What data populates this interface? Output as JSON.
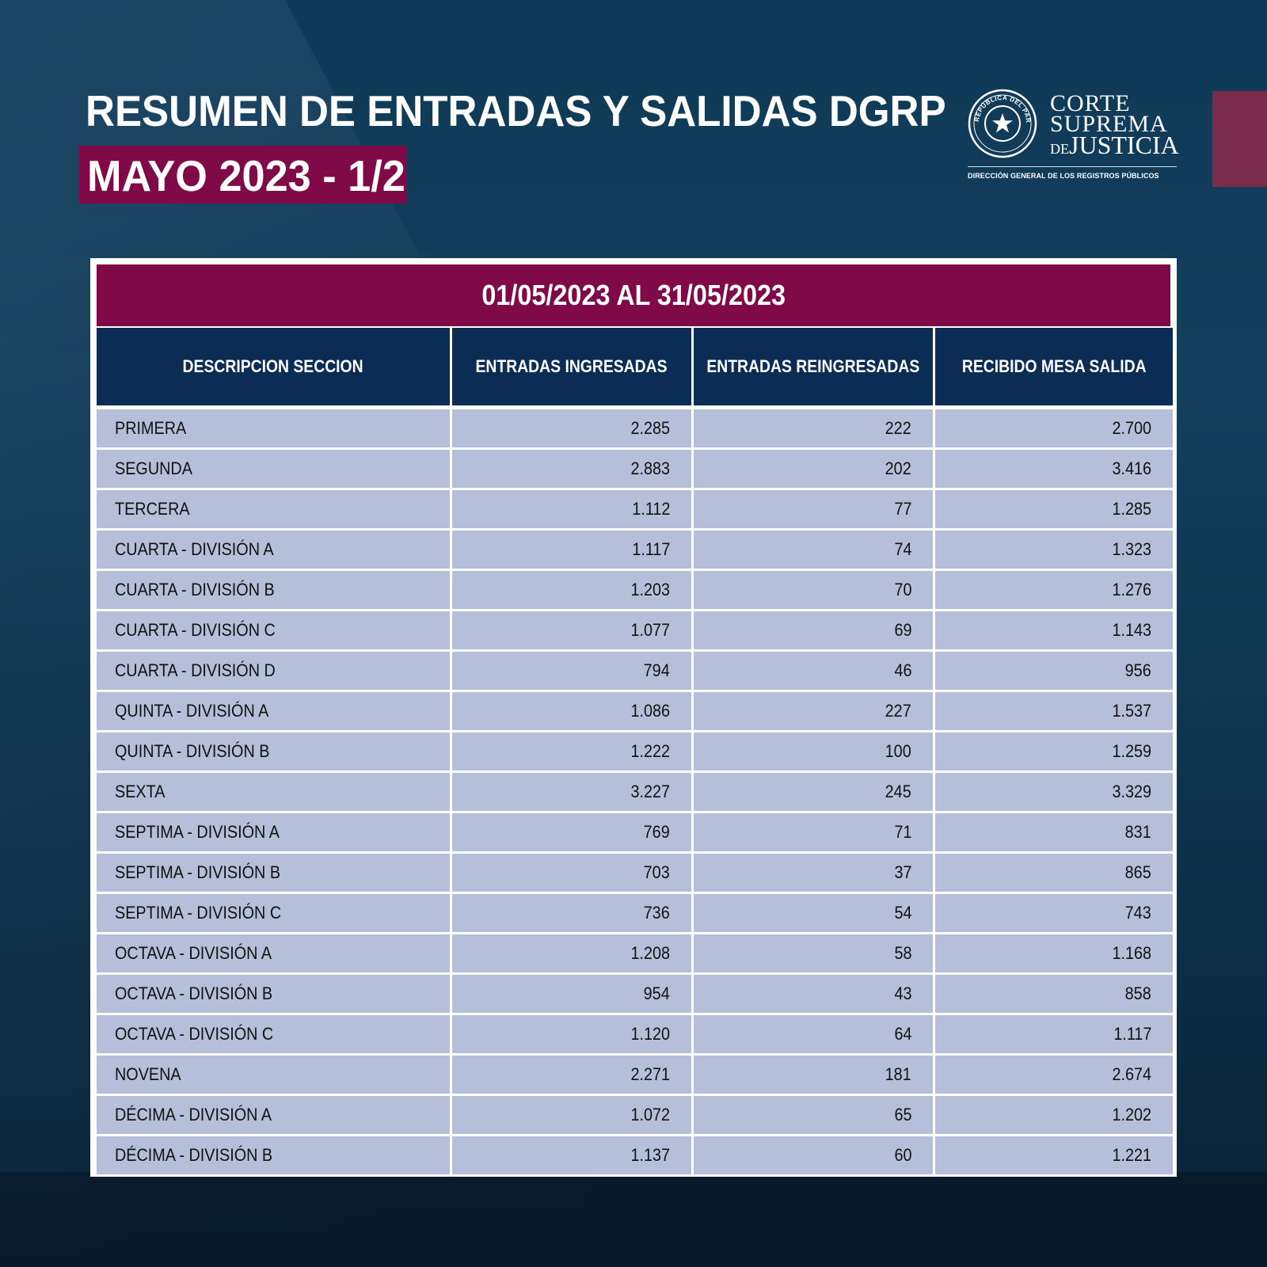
{
  "header": {
    "title": "RESUMEN DE ENTRADAS Y SALIDAS DGRP",
    "subtitle": "MAYO 2023 - 1/2"
  },
  "logo": {
    "line1": "CORTE",
    "line2": "SUPREMA",
    "line3_prefix": "DE",
    "line3": "JUSTICIA",
    "seal_text": "REPÚBLICA DEL PARAGUAY",
    "subtitle": "DIRECCIÓN GENERAL DE LOS REGISTROS PÚBLICOS",
    "icon": "seal-icon"
  },
  "table": {
    "period": "01/05/2023 AL 31/05/2023",
    "columns": [
      "DESCRIPCION SECCION",
      "ENTRADAS INGRESADAS",
      "ENTRADAS REINGRESADAS",
      "RECIBIDO MESA SALIDA"
    ],
    "rows": [
      [
        "PRIMERA",
        "2.285",
        "222",
        "2.700"
      ],
      [
        "SEGUNDA",
        "2.883",
        "202",
        "3.416"
      ],
      [
        "TERCERA",
        "1.112",
        "77",
        "1.285"
      ],
      [
        "CUARTA - DIVISIÓN A",
        "1.117",
        "74",
        "1.323"
      ],
      [
        "CUARTA - DIVISIÓN B",
        "1.203",
        "70",
        "1.276"
      ],
      [
        "CUARTA - DIVISIÓN C",
        "1.077",
        "69",
        "1.143"
      ],
      [
        "CUARTA - DIVISIÓN D",
        "794",
        "46",
        "956"
      ],
      [
        "QUINTA - DIVISIÓN A",
        "1.086",
        "227",
        "1.537"
      ],
      [
        "QUINTA - DIVISIÓN B",
        "1.222",
        "100",
        "1.259"
      ],
      [
        "SEXTA",
        "3.227",
        "245",
        "3.329"
      ],
      [
        "SEPTIMA - DIVISIÓN A",
        "769",
        "71",
        "831"
      ],
      [
        "SEPTIMA - DIVISIÓN B",
        "703",
        "37",
        "865"
      ],
      [
        "SEPTIMA - DIVISIÓN C",
        "736",
        "54",
        "743"
      ],
      [
        "OCTAVA - DIVISIÓN A",
        "1.208",
        "58",
        "1.168"
      ],
      [
        "OCTAVA - DIVISIÓN B",
        "954",
        "43",
        "858"
      ],
      [
        "OCTAVA - DIVISIÓN C",
        "1.120",
        "64",
        "1.117"
      ],
      [
        "NOVENA",
        "2.271",
        "181",
        "2.674"
      ],
      [
        "DÉCIMA - DIVISIÓN A",
        "1.072",
        "65",
        "1.202"
      ],
      [
        "DÉCIMA - DIVISIÓN B",
        "1.137",
        "60",
        "1.221"
      ]
    ]
  },
  "colors": {
    "background": "#0f3a57",
    "accent": "#7f0a47",
    "header": "#0b2c55",
    "row": "#b6bfd9"
  }
}
